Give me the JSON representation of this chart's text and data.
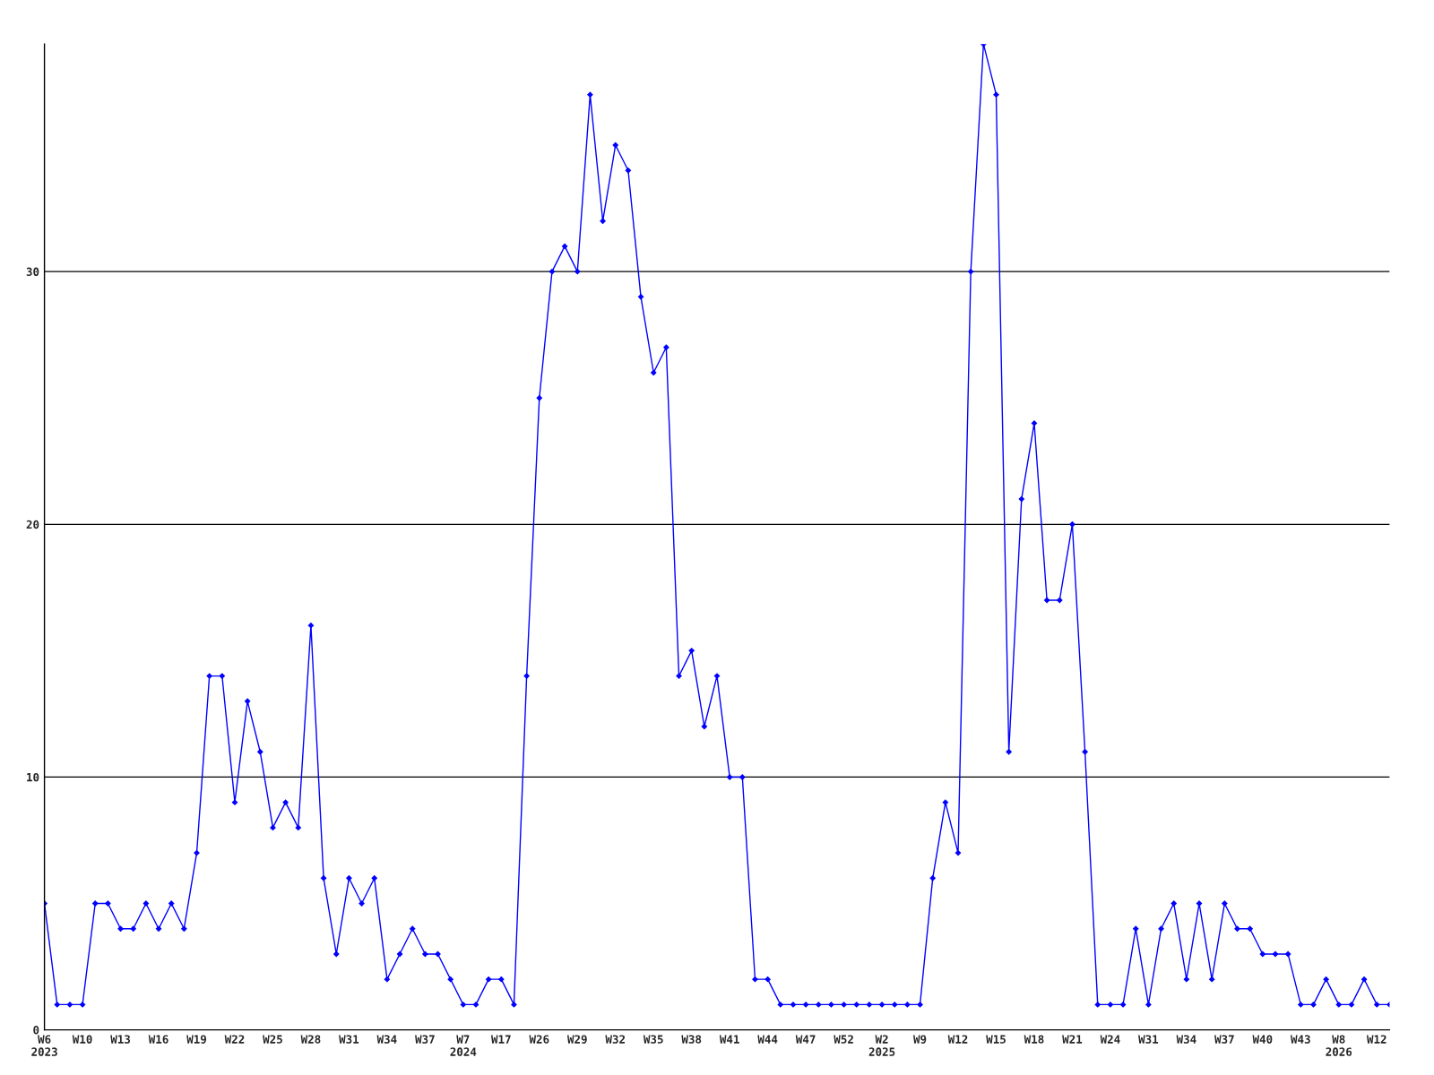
{
  "chart_data": {
    "type": "line",
    "categories": [
      "W6\n2023",
      null,
      null,
      "W10",
      null,
      null,
      "W13",
      null,
      null,
      "W16",
      null,
      null,
      "W19",
      null,
      null,
      "W22",
      null,
      null,
      "W25",
      null,
      null,
      "W28",
      null,
      null,
      "W31",
      null,
      null,
      "W34",
      null,
      null,
      "W37",
      null,
      null,
      "W7\n2024",
      null,
      null,
      "W17",
      null,
      null,
      "W26",
      null,
      null,
      "W29",
      null,
      null,
      "W32",
      null,
      null,
      "W35",
      null,
      null,
      "W38",
      null,
      null,
      "W41",
      null,
      null,
      "W44",
      null,
      null,
      "W47",
      null,
      null,
      "W52",
      null,
      null,
      "W2\n2025",
      null,
      null,
      "W9",
      null,
      null,
      "W12",
      null,
      null,
      "W15",
      null,
      null,
      "W18",
      null,
      null,
      "W21",
      null,
      null,
      "W24",
      null,
      null,
      "W31",
      null,
      null,
      "W34",
      null,
      null,
      "W37",
      null,
      null,
      "W40",
      null,
      null,
      "W43",
      null,
      null,
      "W8\n2026",
      null,
      null,
      "W12",
      null
    ],
    "series": [
      {
        "color": "#0000ff",
        "values": [
          5,
          1,
          1,
          1,
          5,
          5,
          4,
          4,
          5,
          4,
          5,
          4,
          7,
          14,
          14,
          9,
          13,
          11,
          8,
          9,
          8,
          16,
          6,
          3,
          6,
          5,
          6,
          2,
          3,
          4,
          3,
          3,
          2,
          1,
          1,
          2,
          2,
          1,
          14,
          25,
          30,
          31,
          30,
          37,
          32,
          35,
          34,
          29,
          26,
          27,
          14,
          15,
          12,
          14,
          10,
          10,
          2,
          2,
          1,
          1,
          1,
          1,
          1,
          1,
          1,
          1,
          1,
          1,
          1,
          1,
          6,
          9,
          7,
          30,
          39,
          37,
          11,
          21,
          24,
          17,
          17,
          20,
          11,
          1,
          1,
          1,
          4,
          1,
          4,
          5,
          2,
          5,
          2,
          5,
          4,
          4,
          3,
          3,
          3,
          1,
          1,
          2,
          1,
          1,
          2,
          1,
          1
        ]
      }
    ],
    "ylim": [
      0,
      39
    ],
    "yticks": [
      0,
      10,
      20,
      30
    ],
    "grid": "y",
    "marker": "diamond",
    "line_style": "solid"
  }
}
